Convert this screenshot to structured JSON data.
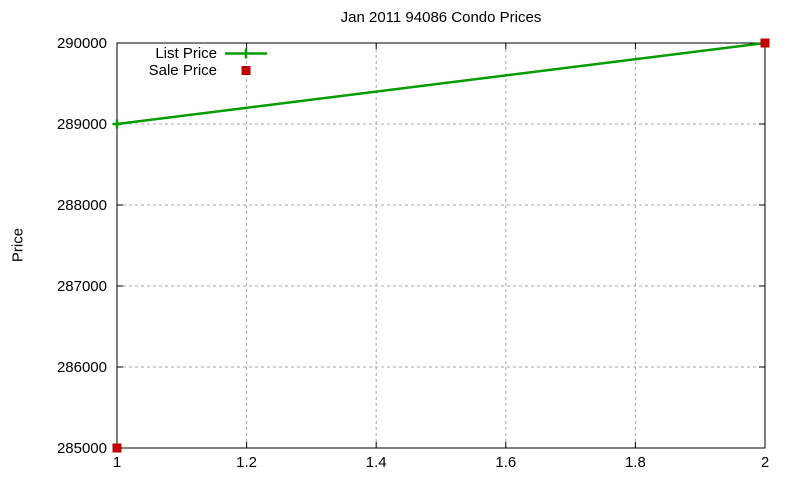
{
  "chart_data": {
    "type": "line",
    "title": "Jan 2011 94086 Condo Prices",
    "xlabel": "",
    "ylabel": "Price",
    "xlim": [
      1,
      2
    ],
    "ylim": [
      285000,
      290000
    ],
    "xticks": [
      1,
      1.2,
      1.4,
      1.6,
      1.8,
      2
    ],
    "xtick_labels": [
      "1",
      "1.2",
      "1.4",
      "1.6",
      "1.8",
      "2"
    ],
    "yticks": [
      285000,
      286000,
      287000,
      288000,
      289000,
      290000
    ],
    "ytick_labels": [
      "285000",
      "286000",
      "287000",
      "288000",
      "289000",
      "290000"
    ],
    "grid": true,
    "legend_position": "top-left-inside",
    "series": [
      {
        "name": "List Price",
        "type": "line",
        "marker": "plus",
        "color": "#009c00",
        "x": [
          1,
          2
        ],
        "y": [
          289000,
          290000
        ]
      },
      {
        "name": "Sale Price",
        "type": "points",
        "marker": "square",
        "color": "#c00000",
        "x": [
          1,
          2
        ],
        "y": [
          285000,
          290000
        ]
      }
    ]
  },
  "colors": {
    "background": "#ffffff",
    "axis": "#000000",
    "grid": "#a8a8a8",
    "list_price": "#009c00",
    "sale_price": "#c00000"
  }
}
